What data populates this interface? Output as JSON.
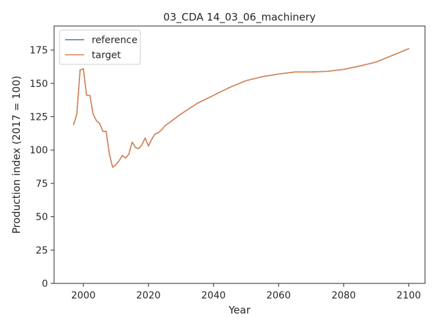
{
  "chart_data": {
    "type": "line",
    "title": "03_CDA 14_03_06_machinery",
    "xlabel": "Year",
    "ylabel": "Production index (2017 = 100)",
    "xlim": [
      1991,
      2105
    ],
    "ylim": [
      0,
      193
    ],
    "xticks": [
      2000,
      2020,
      2040,
      2060,
      2080,
      2100
    ],
    "yticks": [
      0,
      25,
      50,
      75,
      100,
      125,
      150,
      175
    ],
    "grid": false,
    "legend_position": "top-left",
    "series": [
      {
        "name": "reference",
        "color": "#4c72b0",
        "x": [
          1997,
          1998,
          1999,
          2000,
          2001,
          2002,
          2003,
          2004,
          2005,
          2006,
          2007,
          2008,
          2009,
          2010,
          2011,
          2012,
          2013,
          2014,
          2015,
          2016,
          2017,
          2018,
          2019,
          2020,
          2021,
          2022,
          2023,
          2024,
          2025,
          2030,
          2035,
          2040,
          2045,
          2050,
          2055,
          2060,
          2065,
          2070,
          2075,
          2080,
          2085,
          2090,
          2095,
          2100
        ],
        "y": [
          119,
          127,
          160,
          161,
          141,
          141,
          127,
          122,
          120,
          114,
          114,
          97,
          87,
          89,
          92,
          96,
          94,
          97,
          106,
          102,
          101,
          104,
          109,
          103,
          108,
          112,
          113,
          115,
          118,
          127,
          135,
          141,
          147,
          152,
          155,
          157,
          158.5,
          158.5,
          159,
          160.5,
          163,
          166,
          171,
          176
        ]
      },
      {
        "name": "target",
        "color": "#dd8452",
        "x": [
          1997,
          1998,
          1999,
          2000,
          2001,
          2002,
          2003,
          2004,
          2005,
          2006,
          2007,
          2008,
          2009,
          2010,
          2011,
          2012,
          2013,
          2014,
          2015,
          2016,
          2017,
          2018,
          2019,
          2020,
          2021,
          2022,
          2023,
          2024,
          2025,
          2030,
          2035,
          2040,
          2045,
          2050,
          2055,
          2060,
          2065,
          2070,
          2075,
          2080,
          2085,
          2090,
          2095,
          2100
        ],
        "y": [
          119,
          127,
          160,
          161,
          141,
          141,
          127,
          122,
          120,
          114,
          114,
          97,
          87,
          89,
          92,
          96,
          94,
          97,
          106,
          102,
          101,
          104,
          109,
          103,
          108,
          112,
          113,
          115,
          118,
          127,
          135,
          141,
          147,
          152,
          155,
          157,
          158.5,
          158.5,
          159,
          160.5,
          163,
          166,
          171,
          176
        ]
      }
    ]
  }
}
